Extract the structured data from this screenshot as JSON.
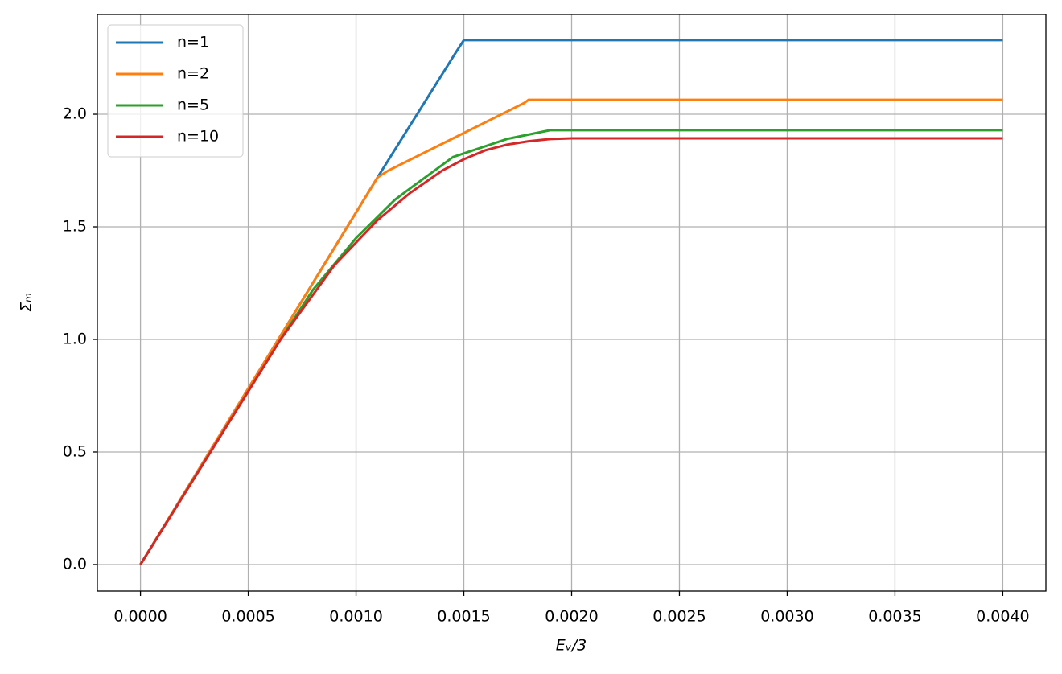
{
  "chart_data": {
    "type": "line",
    "xlabel": "Eᵥ/3",
    "ylabel": "Σₘ",
    "xlim": [
      -0.0002,
      0.0042
    ],
    "ylim": [
      -0.118,
      2.443
    ],
    "xticks": [
      {
        "value": 0,
        "label": "0.0000"
      },
      {
        "value": 0.0005,
        "label": "0.0005"
      },
      {
        "value": 0.001,
        "label": "0.0010"
      },
      {
        "value": 0.0015,
        "label": "0.0015"
      },
      {
        "value": 0.002,
        "label": "0.0020"
      },
      {
        "value": 0.0025,
        "label": "0.0025"
      },
      {
        "value": 0.003,
        "label": "0.0030"
      },
      {
        "value": 0.0035,
        "label": "0.0035"
      },
      {
        "value": 0.004,
        "label": "0.0040"
      }
    ],
    "yticks": [
      {
        "value": 0,
        "label": "0.0"
      },
      0.5,
      {
        "value": 1,
        "label": "1.0"
      },
      1.5,
      {
        "value": 2,
        "label": "2.0"
      }
    ],
    "grid": true,
    "legend": "upper left",
    "series": [
      {
        "name": "n=1",
        "color": "#1f77b4",
        "x": [
          0,
          0.0011,
          0.00146,
          0.0015,
          0.004
        ],
        "values": [
          0,
          1.72,
          2.27,
          2.329,
          2.329
        ]
      },
      {
        "name": "n=2",
        "color": "#ff7f0e",
        "x": [
          0,
          0.0011,
          0.00115,
          0.00178,
          0.0018,
          0.004
        ],
        "values": [
          0,
          1.72,
          1.75,
          2.05,
          2.064,
          2.064
        ]
      },
      {
        "name": "n=5",
        "color": "#2ca02c",
        "x": [
          0,
          0.00065,
          0.0008,
          0.001,
          0.00118,
          0.00125,
          0.00145,
          0.0017,
          0.0019,
          0.004
        ],
        "values": [
          0,
          1.0,
          1.22,
          1.45,
          1.62,
          1.67,
          1.81,
          1.89,
          1.929,
          1.929
        ]
      },
      {
        "name": "n=10",
        "color": "#d62728",
        "x": [
          0,
          0.00065,
          0.0009,
          0.0011,
          0.00125,
          0.0014,
          0.0015,
          0.0016,
          0.0017,
          0.0018,
          0.0019,
          0.002,
          0.004
        ],
        "values": [
          0,
          1.0,
          1.33,
          1.53,
          1.65,
          1.75,
          1.8,
          1.84,
          1.865,
          1.88,
          1.89,
          1.893,
          1.893
        ]
      }
    ]
  }
}
